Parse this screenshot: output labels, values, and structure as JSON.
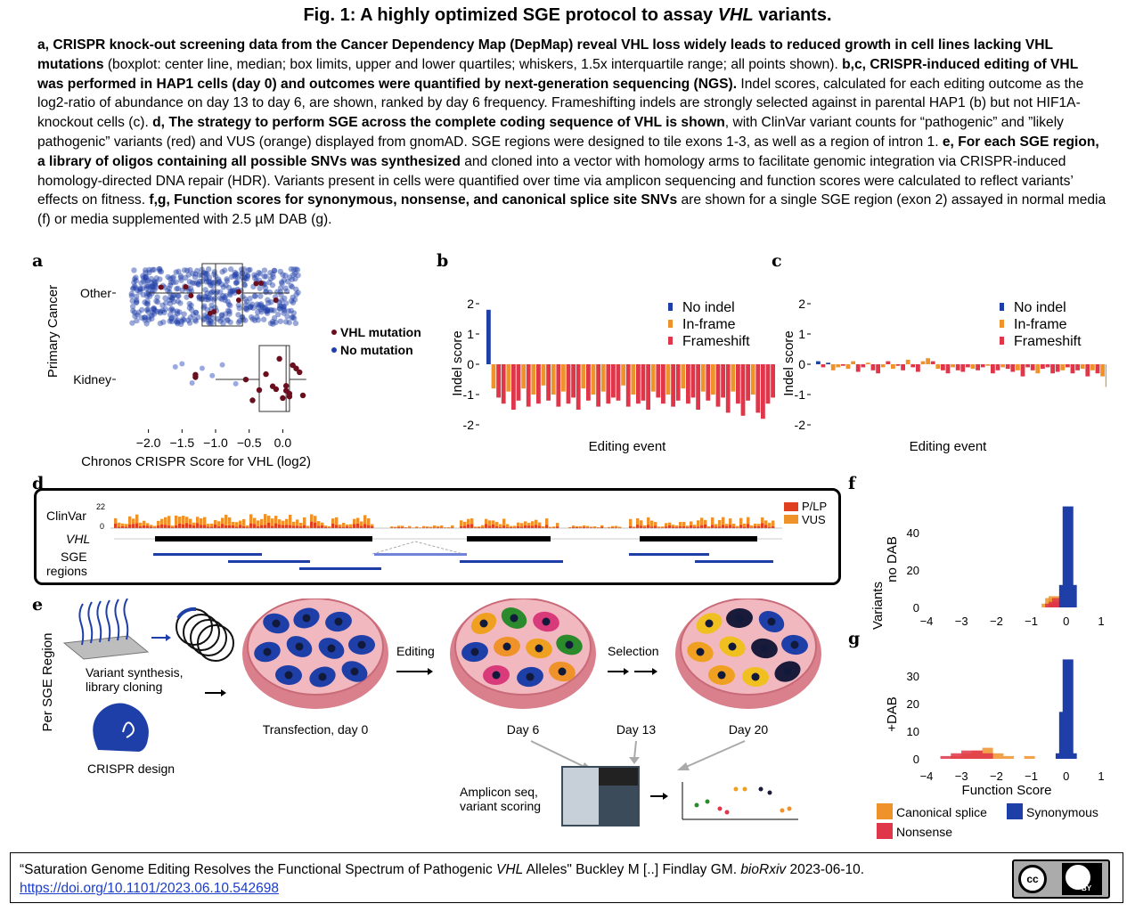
{
  "figure_title_pre": "Fig. 1: A highly optimized SGE protocol to assay ",
  "figure_title_em": "VHL",
  "figure_title_post": " variants.",
  "caption": [
    {
      "b": true,
      "t": "a, CRISPR knock-out screening data from the Cancer Dependency Map (DepMap) reveal VHL loss widely leads to reduced growth in cell lines lacking VHL mutations"
    },
    {
      "b": false,
      "t": " (boxplot: center line, median; box limits, upper and lower quartiles; whiskers, 1.5x interquartile range; all points shown). "
    },
    {
      "b": true,
      "t": "b,c, CRISPR-induced editing of VHL was performed in HAP1 cells (day 0) and outcomes were quantified by next-generation sequencing (NGS)."
    },
    {
      "b": false,
      "t": " Indel scores, calculated for each editing outcome as the log2-ratio of abundance on day 13 to day 6, are shown, ranked by day 6 frequency. Frameshifting indels are strongly selected against in parental HAP1 (b) but not HIF1A-knockout cells (c). "
    },
    {
      "b": true,
      "t": "d, The strategy to perform SGE across the complete coding sequence of VHL is shown"
    },
    {
      "b": false,
      "t": ", with ClinVar variant counts for “pathogenic” and ”likely pathogenic” variants (red) and VUS (orange) displayed from gnomAD. SGE regions were designed to tile exons 1-3, as well as a region of intron 1. "
    },
    {
      "b": true,
      "t": "e, For each SGE region, a library of oligos containing all possible SNVs was synthesized"
    },
    {
      "b": false,
      "t": " and cloned into a vector with homology arms to facilitate genomic integration via CRISPR-induced homology-directed DNA repair (HDR). Variants present in cells were quantified over time via amplicon sequencing and function scores were calculated to reflect variants’ effects on fitness. "
    },
    {
      "b": true,
      "t": "f,g, Function scores for synonymous, nonsense, and canonical splice site SNVs"
    },
    {
      "b": false,
      "t": " are shown for a single SGE region (exon 2) assayed in normal media (f) or media supplemented with 2.5 µM DAB (g)."
    }
  ],
  "panel_letters": {
    "a": "a",
    "b": "b",
    "c": "c",
    "d": "d",
    "e": "e",
    "f": "f",
    "g": "g"
  },
  "colors": {
    "dark_red": "#6b0f1f",
    "blue": "#1f3fa8",
    "light_blue": "#6f84d8",
    "orange": "#f0922a",
    "red": "#e0364a",
    "black": "#000000"
  },
  "panel_a": {
    "ylabel": "Primary Cancer",
    "xlabel": "Chronos CRISPR Score for VHL (log2)",
    "categories": [
      "Other",
      "Kidney"
    ],
    "ticks": [
      "−2.0",
      "−1.5",
      "−1.0",
      "−0.5",
      "0.0"
    ],
    "legend": [
      "VHL mutation",
      "No mutation"
    ]
  },
  "panel_b": {
    "ylabel": "Indel score",
    "xlabel": "Editing event",
    "yticks": [
      "2",
      "1",
      "0",
      "-1",
      "-2"
    ],
    "legend": [
      "No indel",
      "In-frame",
      "Frameshift"
    ]
  },
  "panel_c": {
    "ylabel": "Indel score",
    "xlabel": "Editing event",
    "yticks": [
      "2",
      "1",
      "0",
      "-1",
      "-2"
    ],
    "legend": [
      "No indel",
      "In-frame",
      "Frameshift"
    ]
  },
  "panel_d": {
    "clinvar_label": "ClinVar",
    "max_count": "22",
    "zero": "0",
    "gene": "VHL",
    "sge_label_1": "SGE",
    "sge_label_2": "regions",
    "legend": [
      "P/LP",
      "VUS"
    ]
  },
  "panel_e": {
    "side_label": "Per SGE Region",
    "synthesis_1": "Variant synthesis,",
    "synthesis_2": "library cloning",
    "crispr_design": "CRISPR design",
    "editing": "Editing",
    "selection": "Selection",
    "transfection": "Transfection, day 0",
    "day6": "Day 6",
    "day13": "Day 13",
    "day20": "Day 20",
    "amplicon_1": "Amplicon seq,",
    "amplicon_2": "variant scoring"
  },
  "panel_f": {
    "ylabel_1": "no DAB",
    "yticks": [
      "40",
      "20",
      "0"
    ],
    "xticks": [
      "−4",
      "−3",
      "−2",
      "−1",
      "0",
      "1"
    ]
  },
  "panel_g": {
    "ylabel_1": "+DAB",
    "yticks": [
      "30",
      "20",
      "10",
      "0"
    ],
    "xticks": [
      "−4",
      "−3",
      "−2",
      "−1",
      "0",
      "1"
    ],
    "xlabel": "Function Score"
  },
  "panel_fg_ylabel": "Variants",
  "panel_fg_legend": [
    "Canonical splice",
    "Synonymous",
    "Nonsense"
  ],
  "footer": {
    "ref_pre": "“Saturation Genome Editing Resolves the Functional Spectrum of Pathogenic ",
    "ref_em": "VHL",
    "ref_mid": " Alleles\" Buckley M [..] Findlay GM. ",
    "ref_journal": "bioRxiv",
    "ref_post": " 2023-06-10.",
    "doi": "https://doi.org/10.1101/2023.06.10.542698",
    "cc": "cc",
    "by": "BY"
  },
  "chart_data": [
    {
      "type": "scatter",
      "panel": "a",
      "xlabel": "Chronos CRISPR Score for VHL (log2)",
      "ylabel": "Primary Cancer",
      "xlim": [
        -2.3,
        0.3
      ],
      "groups": [
        {
          "category": "Other",
          "box": {
            "q1": -1.2,
            "median": -1.0,
            "q3": -0.6,
            "whisker_low": -2.0,
            "whisker_high": 0.1
          }
        },
        {
          "category": "Kidney",
          "box": {
            "q1": -0.35,
            "median": 0.05,
            "q3": 0.1,
            "whisker_low": -1.0,
            "whisker_high": 0.35
          },
          "vhl_mutation_points": [
            -1.3,
            -1.3,
            -0.55,
            -0.45,
            -0.35,
            -0.25,
            -0.15,
            -0.1,
            -0.05,
            0.0,
            0.05,
            0.1,
            0.15,
            0.2,
            0.25,
            0.3,
            0.05,
            0.1
          ],
          "no_mutation_points": [
            -1.6,
            -1.5,
            -1.35,
            -1.2,
            -1.05,
            -0.9,
            -0.7
          ]
        }
      ]
    },
    {
      "type": "bar",
      "panel": "b",
      "xlabel": "Editing event",
      "ylabel": "Indel score",
      "ylim": [
        -2,
        2
      ],
      "values": [
        1.8,
        -0.8,
        -1.1,
        -1.3,
        -0.9,
        -1.5,
        -1.2,
        -0.8,
        -1.4,
        -1.0,
        -1.3,
        -0.7,
        -1.2,
        -1.0,
        -1.4,
        -0.9,
        -1.3,
        -1.1,
        -1.5,
        -0.8,
        -1.2,
        -1.0,
        -1.4,
        -0.9,
        -1.3,
        -1.1,
        -1.2,
        -0.7,
        -1.4,
        -1.0,
        -1.3,
        -1.2,
        -1.5,
        -0.9,
        -1.1,
        -1.3,
        -1.0,
        -1.4,
        -1.2,
        -0.8,
        -1.3,
        -1.1,
        -1.5,
        -0.9,
        -1.2,
        -1.0,
        -1.4,
        -1.1,
        -1.6,
        -0.9,
        -1.3,
        -1.7,
        -1.2,
        -1.0,
        -1.6,
        -1.8,
        -1.3,
        -1.1,
        -0.6
      ],
      "categories_type": [
        "No indel",
        "In-frame",
        "Frameshift",
        "Frameshift",
        "In-frame",
        "Frameshift",
        "Frameshift",
        "In-frame",
        "Frameshift",
        "In-frame",
        "Frameshift",
        "In-frame",
        "Frameshift",
        "In-frame",
        "Frameshift",
        "In-frame",
        "Frameshift",
        "Frameshift",
        "Frameshift",
        "In-frame",
        "Frameshift",
        "In-frame",
        "Frameshift",
        "In-frame",
        "Frameshift",
        "Frameshift",
        "Frameshift",
        "In-frame",
        "Frameshift",
        "In-frame",
        "Frameshift",
        "Frameshift",
        "Frameshift",
        "In-frame",
        "Frameshift",
        "Frameshift",
        "In-frame",
        "Frameshift",
        "Frameshift",
        "In-frame",
        "Frameshift",
        "Frameshift",
        "Frameshift",
        "In-frame",
        "Frameshift",
        "In-frame",
        "Frameshift",
        "Frameshift",
        "Frameshift",
        "In-frame",
        "Frameshift",
        "Frameshift",
        "Frameshift",
        "In-frame",
        "Frameshift",
        "Frameshift",
        "Frameshift",
        "Frameshift",
        "In-frame"
      ]
    },
    {
      "type": "bar",
      "panel": "c",
      "xlabel": "Editing event",
      "ylabel": "Indel score",
      "ylim": [
        -2,
        2
      ],
      "values": [
        0.1,
        -0.1,
        0.05,
        -0.2,
        -0.1,
        -0.05,
        -0.15,
        0.1,
        -0.25,
        -0.1,
        0.05,
        -0.2,
        -0.3,
        -0.1,
        0.1,
        -0.15,
        -0.05,
        -0.2,
        0.15,
        -0.1,
        -0.25,
        0.1,
        0.2,
        0.1,
        -0.15,
        -0.2,
        -0.3,
        -0.1,
        -0.2,
        -0.25,
        -0.1,
        -0.15,
        -0.2,
        -0.1,
        -0.05,
        -0.3,
        -0.2,
        -0.1,
        -0.15,
        -0.25,
        -0.2,
        -0.4,
        -0.1,
        -0.2,
        -0.3,
        -0.15,
        -0.1,
        -0.3,
        -0.25,
        -0.2,
        -0.1,
        -0.3,
        -0.2,
        -0.15,
        -0.4,
        -0.2,
        -0.3,
        -0.4,
        -0.75
      ],
      "categories_type": [
        "No indel",
        "Frameshift",
        "No indel",
        "In-frame",
        "In-frame",
        "Frameshift",
        "In-frame",
        "In-frame",
        "Frameshift",
        "Frameshift",
        "In-frame",
        "Frameshift",
        "Frameshift",
        "In-frame",
        "Frameshift",
        "In-frame",
        "Frameshift",
        "Frameshift",
        "In-frame",
        "Frameshift",
        "Frameshift",
        "In-frame",
        "In-frame",
        "Frameshift",
        "In-frame",
        "Frameshift",
        "Frameshift",
        "In-frame",
        "Frameshift",
        "Frameshift",
        "Frameshift",
        "In-frame",
        "Frameshift",
        "Frameshift",
        "In-frame",
        "Frameshift",
        "Frameshift",
        "In-frame",
        "Frameshift",
        "Frameshift",
        "In-frame",
        "Frameshift",
        "Frameshift",
        "Frameshift",
        "In-frame",
        "Frameshift",
        "Frameshift",
        "Frameshift",
        "Frameshift",
        "In-frame",
        "Frameshift",
        "Frameshift",
        "Frameshift",
        "In-frame",
        "Frameshift",
        "In-frame",
        "Frameshift",
        "In-frame",
        "In-frame"
      ]
    },
    {
      "type": "bar",
      "panel": "f",
      "xlabel": "",
      "ylabel": "Variants",
      "series": [
        {
          "name": "Canonical splice",
          "bins": [
            -0.55,
            -0.45,
            -0.35,
            -0.25
          ],
          "values": [
            2,
            5,
            6,
            4
          ]
        },
        {
          "name": "Nonsense",
          "bins": [
            -0.45,
            -0.35,
            -0.25
          ],
          "values": [
            2,
            3,
            5
          ]
        },
        {
          "name": "Synonymous",
          "bins": [
            -0.05,
            0.05,
            0.15
          ],
          "values": [
            12,
            54,
            12
          ]
        }
      ]
    },
    {
      "type": "bar",
      "panel": "g",
      "xlabel": "Function Score",
      "ylabel": "Variants",
      "series": [
        {
          "name": "Canonical splice",
          "bins": [
            -3.15,
            -2.85,
            -2.55,
            -2.25,
            -1.95,
            -1.65,
            -1.05
          ],
          "values": [
            1,
            2,
            3,
            4,
            2,
            1,
            1
          ]
        },
        {
          "name": "Nonsense",
          "bins": [
            -3.45,
            -3.15,
            -2.85,
            -2.55,
            -2.25
          ],
          "values": [
            1,
            2,
            3,
            3,
            2
          ]
        },
        {
          "name": "Synonymous",
          "bins": [
            -0.15,
            -0.05,
            0.05,
            0.15
          ],
          "values": [
            2,
            17,
            36,
            2
          ]
        }
      ]
    }
  ]
}
